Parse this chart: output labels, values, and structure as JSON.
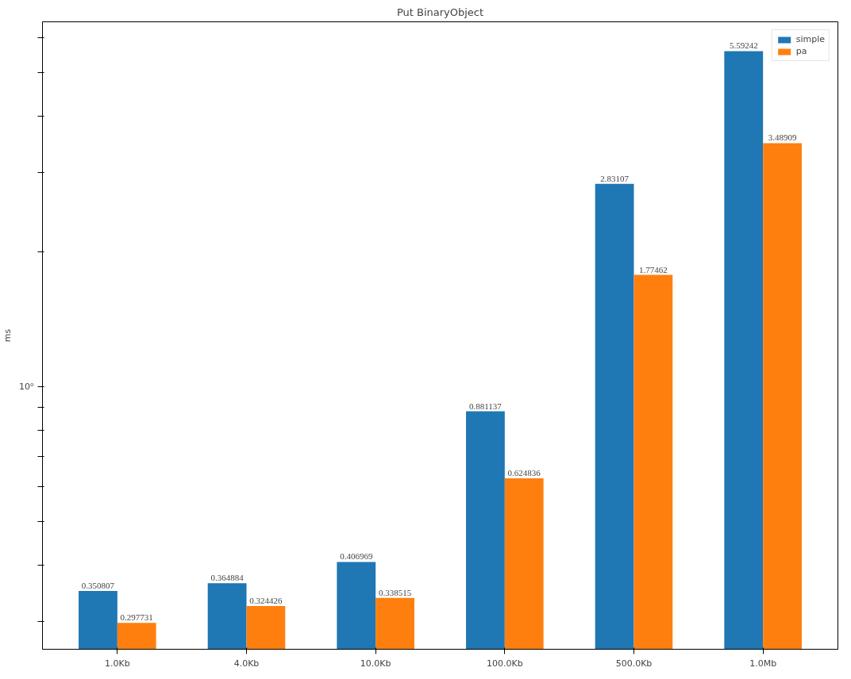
{
  "chart_data": {
    "type": "bar",
    "title": "Put BinaryObject",
    "ylabel": "ms",
    "categories": [
      "1.0Kb",
      "4.0Kb",
      "10.0Kb",
      "100.0Kb",
      "500.0Kb",
      "1.0Mb"
    ],
    "series": [
      {
        "name": "simple",
        "color": "#1f77b4",
        "values": [
          0.350807,
          0.364884,
          0.406969,
          0.881137,
          2.83107,
          5.59242
        ]
      },
      {
        "name": "pa",
        "color": "#ff7f0e",
        "values": [
          0.297731,
          0.324426,
          0.338515,
          0.624836,
          1.77462,
          3.48909
        ]
      }
    ],
    "log": "y",
    "ylim": [
      0.26,
      6.5
    ],
    "annotations": [
      "10⁰"
    ],
    "data_labels": true,
    "legend": "top right",
    "grid": false
  }
}
